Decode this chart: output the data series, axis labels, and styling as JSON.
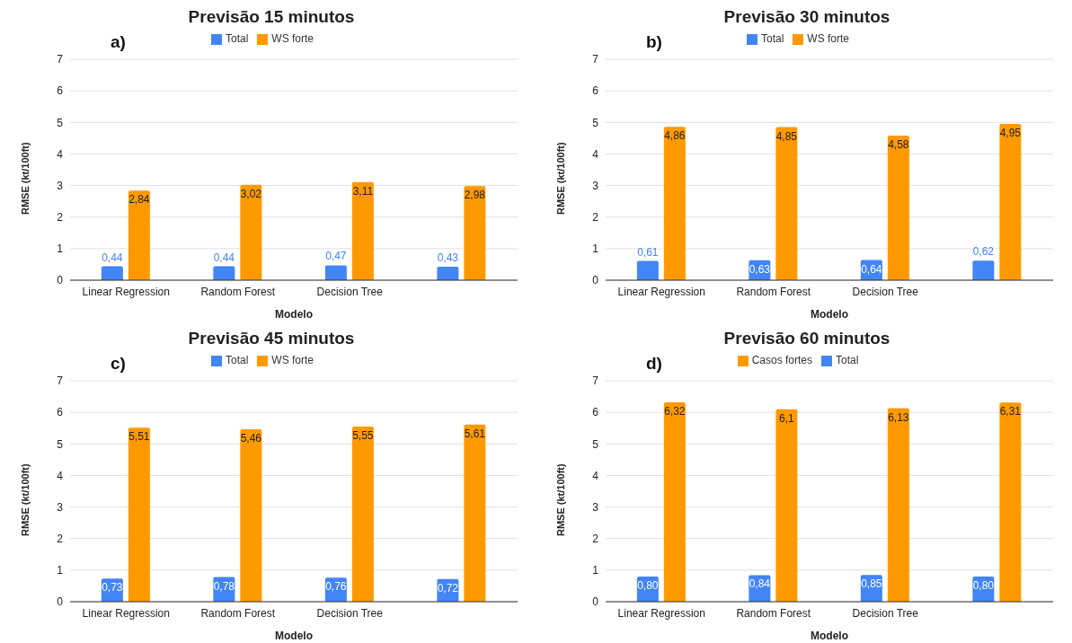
{
  "chart_data": [
    {
      "type": "bar",
      "title": "Previsão 15 minutos",
      "xlabel": "Modelo",
      "ylabel": "RMSE (kt/100ft)",
      "annotations": [
        "a)"
      ],
      "categories": [
        "Linear Regression",
        "Random Forest",
        "Decision Tree",
        null
      ],
      "ylim": [
        0,
        7
      ],
      "yticks": [
        0,
        1,
        2,
        3,
        4,
        5,
        6,
        7
      ],
      "grid": "y",
      "legend": "top",
      "series": [
        {
          "name": "Total",
          "color": "#4285f4",
          "values": [
            0.44,
            0.44,
            0.47,
            0.43
          ],
          "value_labels": [
            "0,44",
            "0,44",
            "0,47",
            "0,43"
          ]
        },
        {
          "name": "WS forte",
          "color": "#ff9900",
          "values": [
            2.84,
            3.02,
            3.11,
            2.98
          ],
          "value_labels": [
            "2,84",
            "3,02",
            "3,11",
            "2,98"
          ]
        }
      ]
    },
    {
      "type": "bar",
      "title": "Previsão 30 minutos",
      "xlabel": "Modelo",
      "ylabel": "RMSE (kt/100ft)",
      "annotations": [
        "b)"
      ],
      "categories": [
        "Linear Regression",
        "Random Forest",
        "Decision Tree",
        null
      ],
      "ylim": [
        0,
        7
      ],
      "yticks": [
        0,
        1,
        2,
        3,
        4,
        5,
        6,
        7
      ],
      "grid": "y",
      "legend": "top",
      "series": [
        {
          "name": "Total",
          "color": "#4285f4",
          "values": [
            0.61,
            0.63,
            0.64,
            0.62
          ],
          "value_labels": [
            "0,61",
            "0,63",
            "0,64",
            "0,62"
          ]
        },
        {
          "name": "WS forte",
          "color": "#ff9900",
          "values": [
            4.86,
            4.85,
            4.58,
            4.95
          ],
          "value_labels": [
            "4,86",
            "4,85",
            "4,58",
            "4,95"
          ]
        }
      ]
    },
    {
      "type": "bar",
      "title": "Previsão 45 minutos",
      "xlabel": "Modelo",
      "ylabel": "RMSE (kt/100ft)",
      "annotations": [
        "c)"
      ],
      "categories": [
        "Linear Regression",
        "Random Forest",
        "Decision Tree",
        null
      ],
      "ylim": [
        0,
        7
      ],
      "yticks": [
        0,
        1,
        2,
        3,
        4,
        5,
        6,
        7
      ],
      "grid": "y",
      "legend": "top",
      "series": [
        {
          "name": "Total",
          "color": "#4285f4",
          "values": [
            0.73,
            0.78,
            0.76,
            0.72
          ],
          "value_labels": [
            "0,73",
            "0,78",
            "0,76",
            "0,72"
          ]
        },
        {
          "name": "WS forte",
          "color": "#ff9900",
          "values": [
            5.51,
            5.46,
            5.55,
            5.61
          ],
          "value_labels": [
            "5,51",
            "5,46",
            "5,55",
            "5,61"
          ]
        }
      ]
    },
    {
      "type": "bar",
      "title": "Previsão 60 minutos",
      "xlabel": "Modelo",
      "ylabel": "RMSE (kt/100ft)",
      "annotations": [
        "d)"
      ],
      "categories": [
        "Linear Regression",
        "Random Forest",
        "Decision Tree",
        null
      ],
      "ylim": [
        0,
        7
      ],
      "yticks": [
        0,
        1,
        2,
        3,
        4,
        5,
        6,
        7
      ],
      "grid": "y",
      "legend": "top",
      "series": [
        {
          "name": "Total",
          "color": "#4285f4",
          "values": [
            0.8,
            0.84,
            0.85,
            0.8
          ],
          "value_labels": [
            "0,80",
            "0,84",
            "0,85",
            "0,80"
          ]
        },
        {
          "name": "Casos fortes",
          "color": "#ff9900",
          "values": [
            6.32,
            6.1,
            6.13,
            6.31
          ],
          "value_labels": [
            "6,32",
            "6,1",
            "6,13",
            "6,31"
          ]
        }
      ]
    }
  ]
}
